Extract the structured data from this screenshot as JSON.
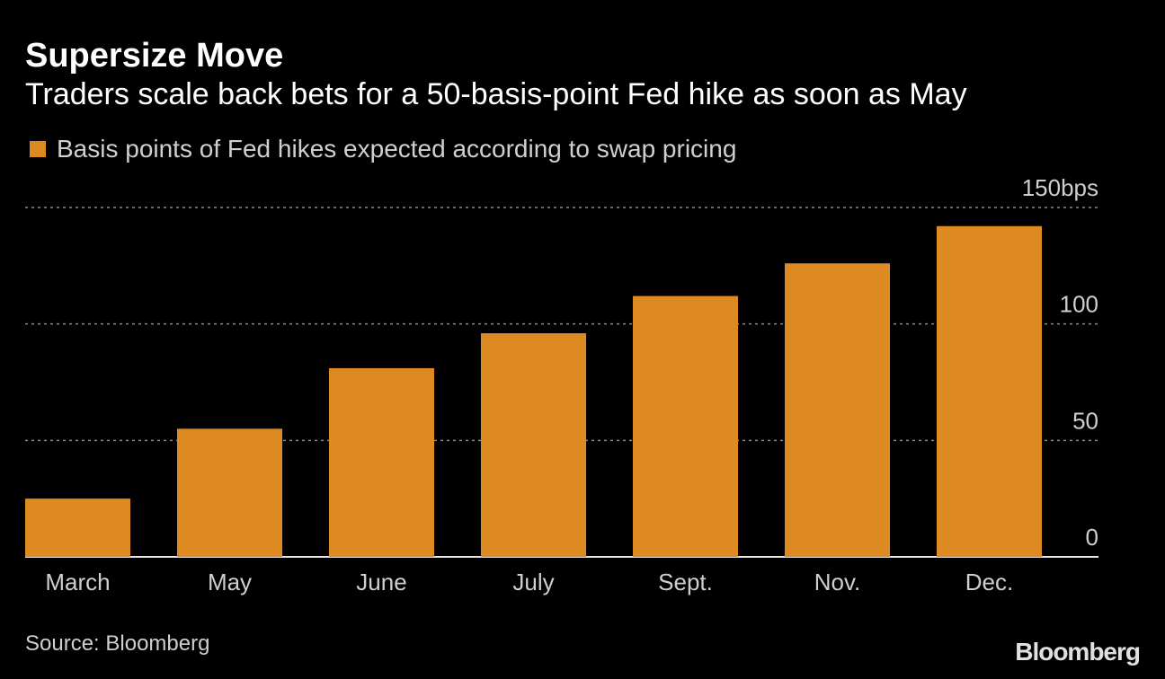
{
  "colors": {
    "background": "#000000",
    "bar": "#dd8a22",
    "text": "#ffffff",
    "muted_text": "#cfcfcf",
    "grid": "#8a8a8a"
  },
  "chart_data": {
    "type": "bar",
    "title": "Supersize Move",
    "subtitle": "Traders scale back bets for a 50-basis-point Fed hike as soon as May",
    "legend": [
      {
        "label": "Basis points of Fed hikes expected according to swap pricing",
        "color": "#dd8a22"
      }
    ],
    "categories": [
      "March",
      "May",
      "June",
      "July",
      "Sept.",
      "Nov.",
      "Dec."
    ],
    "series": [
      {
        "name": "Basis points of Fed hikes expected according to swap pricing",
        "values": [
          25,
          55,
          81,
          96,
          112,
          126,
          142
        ]
      }
    ],
    "ylim": [
      0,
      150
    ],
    "yticks": [
      {
        "value": 0,
        "label": "0"
      },
      {
        "value": 50,
        "label": "50"
      },
      {
        "value": 100,
        "label": "100"
      },
      {
        "value": 150,
        "label": "150bps"
      }
    ],
    "xlabel": "",
    "ylabel": "",
    "grid": true,
    "axis_side": "right",
    "source": "Source: Bloomberg"
  },
  "brand": {
    "logo_text": "Bloomberg"
  }
}
